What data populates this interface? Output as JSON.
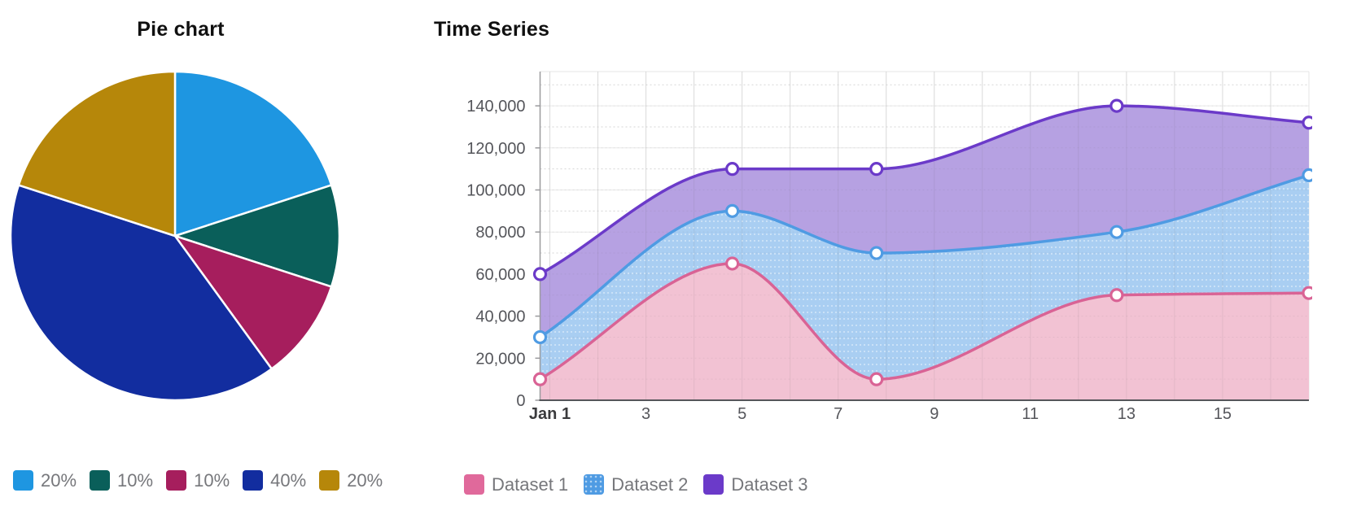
{
  "page": {
    "background": "#ffffff"
  },
  "chart_data": [
    {
      "id": "pie",
      "type": "pie",
      "title": "Pie chart",
      "legend_position": "bottom-left",
      "start_angle_deg": 0,
      "slice_border_color": "#ffffff",
      "slices": [
        {
          "label": "20%",
          "value": 20,
          "color": "#1E96E1"
        },
        {
          "label": "10%",
          "value": 10,
          "color": "#0A5F5A"
        },
        {
          "label": "10%",
          "value": 10,
          "color": "#A61E5D"
        },
        {
          "label": "40%",
          "value": 40,
          "color": "#122D9F"
        },
        {
          "label": "20%",
          "value": 20,
          "color": "#B6870A"
        }
      ]
    },
    {
      "id": "timeseries",
      "type": "area",
      "title": "Time Series",
      "legend_position": "bottom-left",
      "grid": true,
      "x": [
        1,
        5,
        8,
        13,
        17
      ],
      "x_range": [
        1,
        17
      ],
      "x_tick_days": [
        1,
        3,
        5,
        7,
        9,
        11,
        13,
        15
      ],
      "x_tick_labels": [
        "Jan 1",
        "3",
        "5",
        "7",
        "9",
        "11",
        "13",
        "15"
      ],
      "y_range": [
        0,
        156000
      ],
      "y_tick_values": [
        140000,
        120000,
        100000,
        80000,
        60000,
        40000,
        20000,
        0
      ],
      "y_tick_labels": [
        "140,000",
        "120,000",
        "100,000",
        "80,000",
        "60,000",
        "40,000",
        "20,000",
        "0"
      ],
      "series": [
        {
          "name": "Dataset 1",
          "values": [
            10000,
            65000,
            10000,
            50000,
            51000
          ],
          "line_color": "#D96395",
          "fill_color": "#F2C2D3",
          "pattern": "none"
        },
        {
          "name": "Dataset 2",
          "values": [
            30000,
            90000,
            70000,
            80000,
            107000
          ],
          "line_color": "#4F9BE3",
          "fill_color": "#A9CEF2",
          "pattern": "dot"
        },
        {
          "name": "Dataset 3",
          "values": [
            60000,
            110000,
            110000,
            140000,
            132000
          ],
          "line_color": "#6B3AC9",
          "fill_color": "#B6A1E2",
          "pattern": "none"
        }
      ]
    }
  ]
}
